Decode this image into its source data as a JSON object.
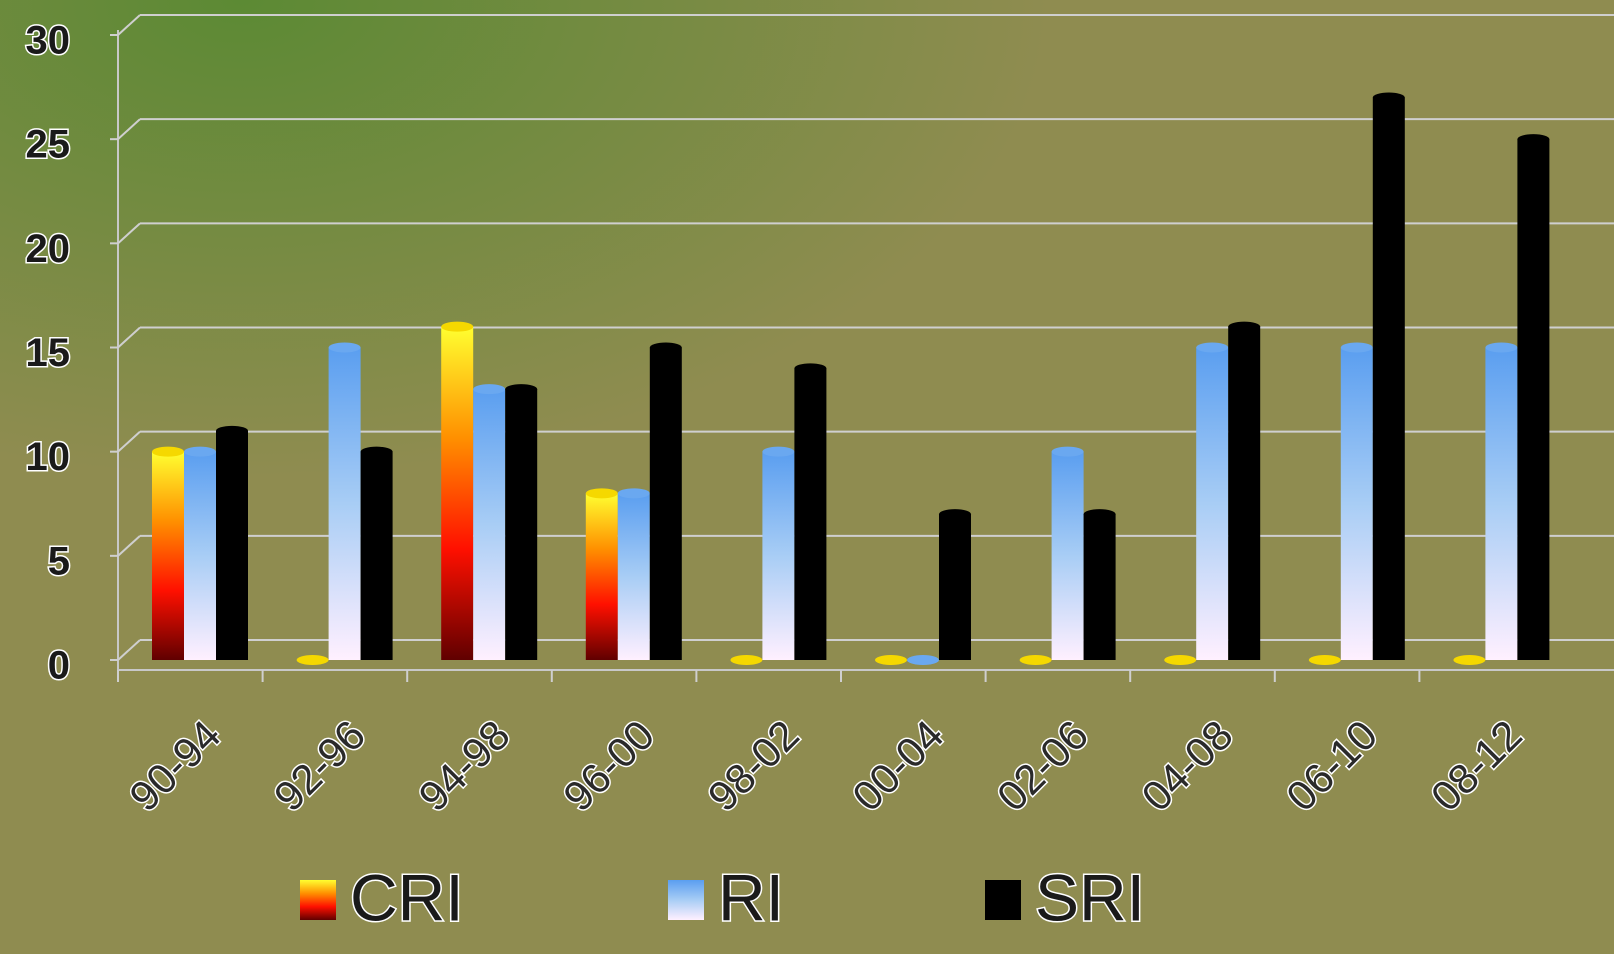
{
  "chart_data": {
    "type": "bar",
    "categories": [
      "90-94",
      "92-96",
      "94-98",
      "96-00",
      "98-02",
      "00-04",
      "02-06",
      "04-08",
      "06-10",
      "08-12"
    ],
    "series": [
      {
        "name": "CRI",
        "color": "#f5d800",
        "gradient": [
          "#ffff30",
          "#ff9000",
          "#ff1000",
          "#600000"
        ],
        "values": [
          10,
          0,
          16,
          8,
          0,
          0,
          0,
          0,
          0,
          0
        ]
      },
      {
        "name": "RI",
        "color": "#6aa8f0",
        "gradient": [
          "#5a9ef0",
          "#a8cdf5",
          "#fff0ff"
        ],
        "values": [
          10,
          15,
          13,
          8,
          10,
          0,
          10,
          15,
          15,
          15
        ]
      },
      {
        "name": "SRI",
        "color": "#000000",
        "gradient": [
          "#000000",
          "#000000"
        ],
        "values": [
          11,
          10,
          13,
          15,
          14,
          7,
          7,
          16,
          27,
          25
        ]
      }
    ],
    "ylim": [
      0,
      30
    ],
    "yticks": [
      0,
      5,
      10,
      15,
      20,
      25,
      30
    ],
    "grid": true
  }
}
